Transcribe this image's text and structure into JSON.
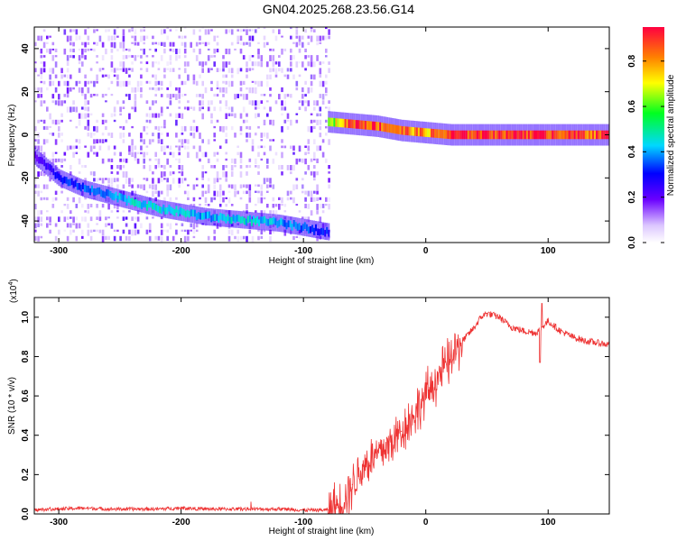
{
  "title": "GN04.2025.268.23.56.G14",
  "chart_data": [
    {
      "type": "heatmap",
      "name": "spectrogram",
      "xlabel": "Height of straight line (km)",
      "ylabel": "Frequency (Hz)",
      "xlim": [
        -320,
        150
      ],
      "ylim": [
        -50,
        50
      ],
      "xticks": [
        -300,
        -200,
        -100,
        0,
        100
      ],
      "yticks": [
        -40,
        -20,
        0,
        20,
        40
      ],
      "colorbar": {
        "label": "Normalized spectral amplitude",
        "range": [
          0,
          0.95
        ],
        "ticks": [
          "0.0",
          "0.2",
          "0.4",
          "0.6",
          "0.8"
        ],
        "tick_values": [
          0,
          0.2,
          0.4,
          0.6,
          0.8
        ]
      },
      "noise_region": {
        "x_start": -320,
        "x_end": -78,
        "f_min": -50,
        "f_max": 50,
        "amplitude": 0.1
      },
      "features": [
        {
          "name": "descending-track",
          "x": [
            -320,
            -300,
            -280,
            -260,
            -240,
            -220,
            -200,
            -180,
            -160,
            -140,
            -120,
            -100,
            -80
          ],
          "f": [
            -10,
            -20,
            -25,
            -28,
            -31,
            -34,
            -36,
            -38,
            -39,
            -40,
            -41,
            -43,
            -45
          ],
          "amplitude": [
            0.2,
            0.3,
            0.35,
            0.4,
            0.45,
            0.45,
            0.45,
            0.4,
            0.45,
            0.45,
            0.4,
            0.35,
            0.3
          ]
        },
        {
          "name": "main-track",
          "x": [
            -80,
            -60,
            -40,
            -20,
            0,
            20,
            40,
            60,
            80,
            100,
            120,
            150
          ],
          "f": [
            6,
            5,
            4,
            2,
            1,
            0,
            0,
            0,
            0,
            0,
            0,
            0
          ],
          "amplitude": [
            0.6,
            0.95,
            0.9,
            0.85,
            0.8,
            0.9,
            0.95,
            0.95,
            0.95,
            0.95,
            0.9,
            0.9
          ]
        }
      ]
    },
    {
      "type": "line",
      "name": "snr",
      "xlabel": "Height of straight line (km)",
      "ylabel": "SNR (10 * v/v)",
      "scale_label": "(x10",
      "scale_exponent": "4",
      "scale": 10000,
      "xlim": [
        -320,
        150
      ],
      "ylim": [
        0,
        1.1
      ],
      "xticks": [
        -300,
        -200,
        -100,
        0,
        100
      ],
      "yticks": [
        "0.0",
        "0.2",
        "0.4",
        "0.6",
        "0.8",
        "1.0"
      ],
      "ytick_values": [
        0,
        0.2,
        0.4,
        0.6,
        0.8,
        1.0
      ],
      "color": "#ee3333",
      "x": [
        -320,
        -300,
        -280,
        -260,
        -240,
        -220,
        -200,
        -180,
        -160,
        -140,
        -120,
        -100,
        -80,
        -70,
        -60,
        -50,
        -40,
        -30,
        -20,
        -10,
        0,
        10,
        20,
        30,
        40,
        45,
        50,
        60,
        70,
        80,
        90,
        95,
        100,
        110,
        120,
        130,
        140,
        150
      ],
      "y": [
        0.02,
        0.025,
        0.03,
        0.025,
        0.025,
        0.025,
        0.03,
        0.025,
        0.025,
        0.025,
        0.025,
        0.02,
        0.02,
        0.05,
        0.15,
        0.25,
        0.3,
        0.35,
        0.42,
        0.5,
        0.6,
        0.7,
        0.78,
        0.88,
        0.95,
        1.0,
        1.02,
        1.0,
        0.95,
        0.93,
        0.92,
        0.95,
        0.98,
        0.93,
        0.9,
        0.88,
        0.87,
        0.86
      ]
    }
  ]
}
